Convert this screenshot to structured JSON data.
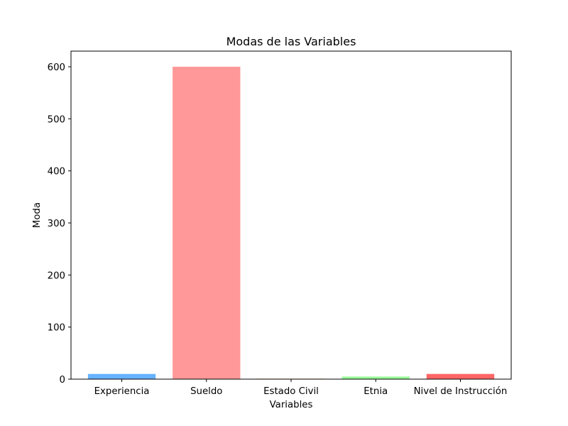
{
  "chart_data": {
    "type": "bar",
    "title": "Modas de las Variables",
    "xlabel": "Variables",
    "ylabel": "Moda",
    "categories": [
      "Experiencia",
      "Sueldo",
      "Estado Civil",
      "Etnia",
      "Nivel de Instrucción"
    ],
    "values": [
      10,
      600,
      1,
      5,
      10
    ],
    "colors": [
      "#66b3ff",
      "#ff9999",
      "#ffcc99",
      "#99ff99",
      "#ff6666"
    ],
    "ylim": [
      0,
      630
    ],
    "yticks": [
      0,
      100,
      200,
      300,
      400,
      500,
      600
    ],
    "grid": false
  }
}
